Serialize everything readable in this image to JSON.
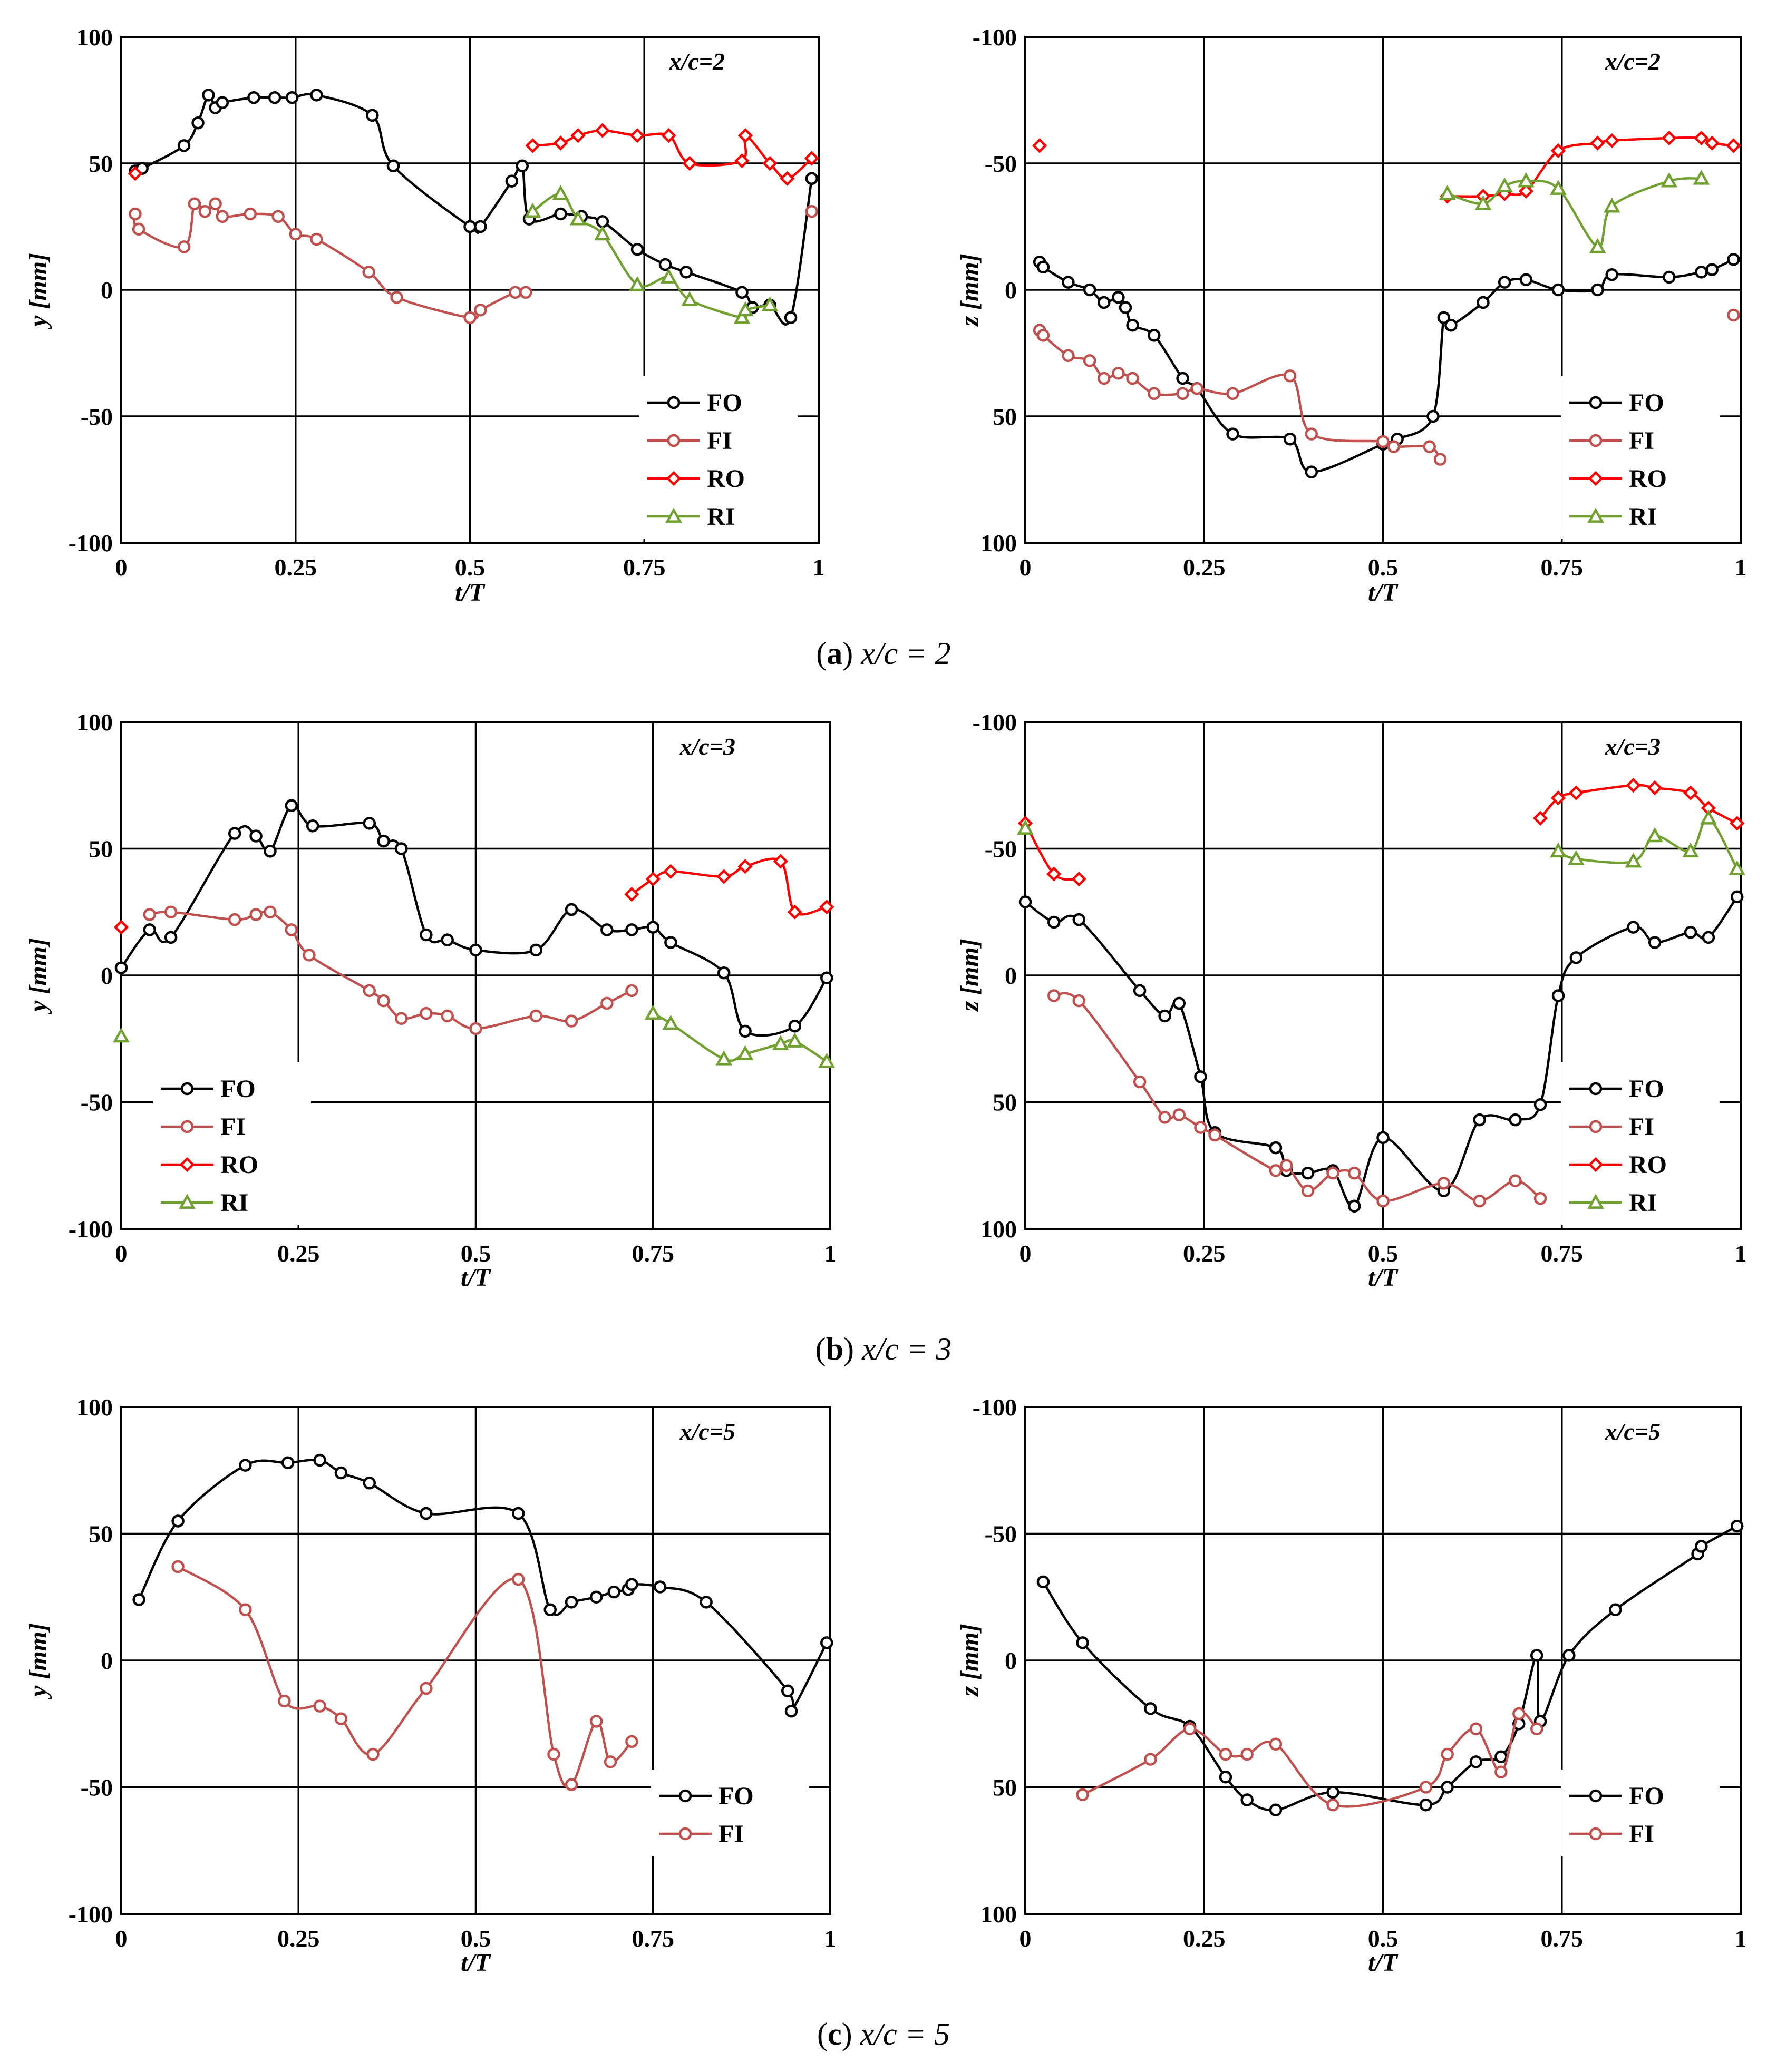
{
  "colors": {
    "FO": "#000000",
    "FI": "#c0504d",
    "RO": "#ff0000",
    "RI": "#70a030"
  },
  "markers": {
    "FO": "circle",
    "FI": "circle",
    "RO": "diamond",
    "RI": "triangle"
  },
  "captions": [
    {
      "letter": "a",
      "text": "x/c = 2"
    },
    {
      "letter": "b",
      "text": "x/c = 3"
    },
    {
      "letter": "c",
      "text": "x/c = 5"
    }
  ],
  "chart_data": [
    {
      "type": "line",
      "title": "x/c=2",
      "xlabel": "t/T",
      "ylabel": "y [mm]",
      "xlim": [
        0,
        1
      ],
      "ylim": [
        -100,
        100
      ],
      "y_inverted": false,
      "xticks": [
        "0",
        "0.25",
        "0.5",
        "0.75",
        "1"
      ],
      "yticks": [
        "100",
        "50",
        "0",
        "-50",
        "-100"
      ],
      "legend": {
        "position": "bottom-right",
        "entries": [
          "FO",
          "FI",
          "RO",
          "RI"
        ]
      },
      "series": [
        {
          "name": "FO",
          "x": [
            0.02,
            0.03,
            0.09,
            0.11,
            0.125,
            0.135,
            0.145,
            0.19,
            0.22,
            0.245,
            0.28,
            0.36,
            0.39,
            0.5,
            0.515,
            0.56,
            0.575,
            0.585,
            0.63,
            0.66,
            0.69,
            0.74,
            0.78,
            0.81,
            0.89,
            0.905,
            0.93,
            0.96,
            0.99
          ],
          "y": [
            47,
            48,
            57,
            66,
            77,
            72,
            74,
            76,
            76,
            76,
            77,
            69,
            49,
            25,
            25,
            43,
            49,
            28,
            30,
            29,
            27,
            16,
            10,
            7,
            -1,
            -7,
            -6,
            -11,
            44
          ]
        },
        {
          "name": "FI",
          "x": [
            0.02,
            0.025,
            0.09,
            0.105,
            0.12,
            0.135,
            0.145,
            0.185,
            0.225,
            0.25,
            0.28,
            0.355,
            0.395,
            0.5,
            0.515,
            0.565,
            0.58,
            0.99
          ],
          "y": [
            30,
            24,
            17,
            34,
            31,
            34,
            29,
            30,
            29,
            22,
            20,
            7,
            -3,
            -11,
            -8,
            -1,
            -1,
            31
          ]
        },
        {
          "name": "RO",
          "x": [
            0.02,
            0.59,
            0.63,
            0.655,
            0.69,
            0.74,
            0.785,
            0.815,
            0.89,
            0.895,
            0.93,
            0.955,
            0.99
          ],
          "y": [
            46,
            57,
            58,
            61,
            63,
            61,
            61,
            50,
            51,
            61,
            50,
            44,
            52
          ]
        },
        {
          "name": "RI",
          "x": [
            0.59,
            0.63,
            0.655,
            0.69,
            0.74,
            0.785,
            0.815,
            0.89,
            0.895,
            0.93
          ],
          "y": [
            31,
            38,
            28,
            22,
            2,
            5,
            -4,
            -11,
            -8,
            -6
          ]
        }
      ]
    },
    {
      "type": "line",
      "title": "x/c=2",
      "xlabel": "t/T",
      "ylabel": "z [mm]",
      "xlim": [
        0,
        1
      ],
      "ylim": [
        -100,
        100
      ],
      "y_inverted": true,
      "xticks": [
        "0",
        "0.25",
        "0.5",
        "0.75",
        "1"
      ],
      "yticks": [
        "-100",
        "-50",
        "0",
        "50",
        "100"
      ],
      "legend": {
        "position": "bottom-right",
        "entries": [
          "FO",
          "FI",
          "RO",
          "RI"
        ]
      },
      "series": [
        {
          "name": "FO",
          "x": [
            0.02,
            0.025,
            0.06,
            0.09,
            0.11,
            0.13,
            0.14,
            0.15,
            0.18,
            0.22,
            0.24,
            0.29,
            0.37,
            0.4,
            0.5,
            0.52,
            0.57,
            0.585,
            0.595,
            0.64,
            0.67,
            0.7,
            0.745,
            0.8,
            0.82,
            0.9,
            0.945,
            0.96,
            0.99
          ],
          "y": [
            -11,
            -9,
            -3,
            0,
            5,
            3,
            7,
            14,
            18,
            35,
            39,
            57,
            59,
            72,
            61,
            59,
            50,
            11,
            14,
            5,
            -3,
            -4,
            0,
            0,
            -6,
            -5,
            -7,
            -8,
            -12
          ]
        },
        {
          "name": "FI",
          "x": [
            0.02,
            0.025,
            0.06,
            0.09,
            0.11,
            0.13,
            0.15,
            0.18,
            0.22,
            0.24,
            0.29,
            0.37,
            0.4,
            0.5,
            0.515,
            0.565,
            0.58,
            0.99
          ],
          "y": [
            16,
            18,
            26,
            28,
            35,
            33,
            35,
            41,
            41,
            39,
            41,
            34,
            57,
            60,
            62,
            62,
            67,
            10
          ]
        },
        {
          "name": "RO",
          "x": [
            0.02,
            0.59,
            0.64,
            0.67,
            0.7,
            0.745,
            0.8,
            0.82,
            0.9,
            0.945,
            0.96,
            0.99
          ],
          "y": [
            -57,
            -37,
            -37,
            -38,
            -39,
            -55,
            -58,
            -59,
            -60,
            -60,
            -58,
            -57
          ]
        },
        {
          "name": "RI",
          "x": [
            0.59,
            0.64,
            0.67,
            0.7,
            0.745,
            0.8,
            0.82,
            0.9,
            0.945
          ],
          "y": [
            -38,
            -34,
            -41,
            -43,
            -40,
            -17,
            -33,
            -43,
            -44
          ]
        }
      ]
    },
    {
      "type": "line",
      "title": "x/c=3",
      "xlabel": "t/T",
      "ylabel": "y [mm]",
      "xlim": [
        0,
        1
      ],
      "ylim": [
        -100,
        100
      ],
      "y_inverted": false,
      "xticks": [
        "0",
        "0.25",
        "0.5",
        "0.75",
        "1"
      ],
      "yticks": [
        "100",
        "50",
        "0",
        "-50",
        "-100"
      ],
      "legend": {
        "position": "bottom-left",
        "entries": [
          "FO",
          "FI",
          "RO",
          "RI"
        ]
      },
      "series": [
        {
          "name": "FO",
          "x": [
            0.0,
            0.04,
            0.07,
            0.16,
            0.19,
            0.21,
            0.24,
            0.27,
            0.35,
            0.37,
            0.395,
            0.43,
            0.46,
            0.5,
            0.585,
            0.635,
            0.685,
            0.72,
            0.75,
            0.775,
            0.85,
            0.88,
            0.95,
            0.995
          ],
          "y": [
            3,
            18,
            15,
            56,
            55,
            49,
            67,
            59,
            60,
            53,
            50,
            16,
            14,
            10,
            10,
            26,
            18,
            18,
            19,
            13,
            1,
            -22,
            -20,
            -1
          ]
        },
        {
          "name": "FI",
          "x": [
            0.04,
            0.07,
            0.16,
            0.19,
            0.21,
            0.24,
            0.265,
            0.35,
            0.37,
            0.395,
            0.43,
            0.46,
            0.5,
            0.585,
            0.635,
            0.685,
            0.72
          ],
          "y": [
            24,
            25,
            22,
            24,
            25,
            18,
            8,
            -6,
            -10,
            -17,
            -15,
            -16,
            -21,
            -16,
            -18,
            -11,
            -6
          ]
        },
        {
          "name": "RO",
          "x": [
            0.0,
            0.72,
            0.75,
            0.775,
            0.85,
            0.88,
            0.93,
            0.95,
            0.995
          ],
          "y": [
            19,
            32,
            38,
            41,
            39,
            43,
            45,
            25,
            27
          ]
        },
        {
          "name": "RI",
          "x": [
            0.0,
            0.75,
            0.775,
            0.85,
            0.88,
            0.93,
            0.95,
            0.995
          ],
          "y": [
            -24,
            -15,
            -19,
            -33,
            -31,
            -27,
            -26,
            -34
          ]
        }
      ]
    },
    {
      "type": "line",
      "title": "x/c=3",
      "xlabel": "t/T",
      "ylabel": "z [mm]",
      "xlim": [
        0,
        1
      ],
      "ylim": [
        -100,
        100
      ],
      "y_inverted": true,
      "xticks": [
        "0",
        "0.25",
        "0.5",
        "0.75",
        "1"
      ],
      "yticks": [
        "-100",
        "-50",
        "0",
        "50",
        "100"
      ],
      "legend": {
        "position": "bottom-right",
        "entries": [
          "FO",
          "FI",
          "RO",
          "RI"
        ]
      },
      "series": [
        {
          "name": "FO",
          "x": [
            0.0,
            0.04,
            0.075,
            0.16,
            0.195,
            0.215,
            0.245,
            0.265,
            0.35,
            0.365,
            0.395,
            0.43,
            0.46,
            0.5,
            0.585,
            0.635,
            0.685,
            0.72,
            0.745,
            0.77,
            0.85,
            0.88,
            0.93,
            0.955,
            0.995
          ],
          "y": [
            -29,
            -21,
            -22,
            6,
            16,
            11,
            40,
            62,
            68,
            77,
            78,
            77,
            91,
            64,
            85,
            57,
            57,
            51,
            8,
            -7,
            -19,
            -13,
            -17,
            -15,
            -31
          ]
        },
        {
          "name": "FI",
          "x": [
            0.04,
            0.075,
            0.16,
            0.195,
            0.215,
            0.245,
            0.265,
            0.35,
            0.365,
            0.395,
            0.43,
            0.46,
            0.5,
            0.585,
            0.635,
            0.685,
            0.72
          ],
          "y": [
            8,
            10,
            42,
            56,
            55,
            60,
            63,
            77,
            75,
            85,
            78,
            78,
            89,
            82,
            89,
            81,
            88
          ]
        },
        {
          "name": "RO",
          "x": [
            0.0,
            0.04,
            0.075,
            0.72,
            0.745,
            0.77,
            0.85,
            0.88,
            0.93,
            0.955,
            0.995
          ],
          "y": [
            -60,
            -40,
            -38,
            -62,
            -70,
            -72,
            -75,
            -74,
            -72,
            -66,
            -60
          ]
        },
        {
          "name": "RI",
          "x": [
            0.0,
            0.745,
            0.77,
            0.85,
            0.88,
            0.93,
            0.955,
            0.995
          ],
          "y": [
            -58,
            -49,
            -46,
            -45,
            -55,
            -49,
            -62,
            -42
          ]
        }
      ]
    },
    {
      "type": "line",
      "title": "x/c=5",
      "xlabel": "t/T",
      "ylabel": "y [mm]",
      "xlim": [
        0,
        1
      ],
      "ylim": [
        -100,
        100
      ],
      "y_inverted": false,
      "xticks": [
        "0",
        "0.25",
        "0.5",
        "0.75",
        "1"
      ],
      "yticks": [
        "100",
        "50",
        "0",
        "-50",
        "-100"
      ],
      "legend": {
        "position": "bottom-right",
        "entries": [
          "FO",
          "FI"
        ]
      },
      "series": [
        {
          "name": "FO",
          "x": [
            0.025,
            0.08,
            0.175,
            0.235,
            0.28,
            0.31,
            0.35,
            0.43,
            0.56,
            0.605,
            0.635,
            0.67,
            0.695,
            0.715,
            0.72,
            0.76,
            0.825,
            0.94,
            0.945,
            0.995
          ],
          "y": [
            24,
            55,
            77,
            78,
            79,
            74,
            70,
            58,
            58,
            20,
            23,
            25,
            27,
            28,
            30,
            29,
            23,
            -12,
            -20,
            7
          ]
        },
        {
          "name": "FI",
          "x": [
            0.08,
            0.175,
            0.23,
            0.28,
            0.31,
            0.355,
            0.43,
            0.56,
            0.61,
            0.635,
            0.67,
            0.69,
            0.72
          ],
          "y": [
            37,
            20,
            -16,
            -18,
            -23,
            -37,
            -11,
            32,
            -37,
            -49,
            -24,
            -40,
            -32
          ]
        }
      ]
    },
    {
      "type": "line",
      "title": "x/c=5",
      "xlabel": "t/T",
      "ylabel": "z [mm]",
      "xlim": [
        0,
        1
      ],
      "ylim": [
        -100,
        100
      ],
      "y_inverted": true,
      "xticks": [
        "0",
        "0.25",
        "0.5",
        "0.75",
        "1"
      ],
      "yticks": [
        "-100",
        "-50",
        "0",
        "50",
        "100"
      ],
      "legend": {
        "position": "bottom-right",
        "entries": [
          "FO",
          "FI"
        ]
      },
      "series": [
        {
          "name": "FO",
          "x": [
            0.025,
            0.08,
            0.175,
            0.23,
            0.28,
            0.31,
            0.35,
            0.43,
            0.56,
            0.59,
            0.63,
            0.665,
            0.69,
            0.715,
            0.72,
            0.76,
            0.825,
            0.94,
            0.945,
            0.995
          ],
          "y": [
            -31,
            -7,
            19,
            26,
            46,
            55,
            59,
            52,
            57,
            50,
            40,
            38,
            25,
            -2,
            24,
            -2,
            -20,
            -42,
            -45,
            -53
          ]
        },
        {
          "name": "FI",
          "x": [
            0.08,
            0.175,
            0.23,
            0.28,
            0.31,
            0.35,
            0.43,
            0.56,
            0.59,
            0.63,
            0.665,
            0.69,
            0.715
          ],
          "y": [
            53,
            39,
            27,
            37,
            37,
            33,
            57,
            50,
            37,
            27,
            44,
            21,
            27
          ]
        }
      ]
    }
  ]
}
